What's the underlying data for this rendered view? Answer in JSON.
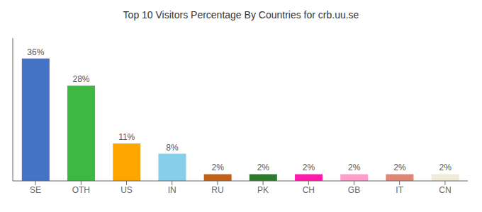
{
  "chart_data": {
    "type": "bar",
    "title": "Top 10 Visitors Percentage By Countries for crb.uu.se",
    "categories": [
      "SE",
      "OTH",
      "US",
      "IN",
      "RU",
      "PK",
      "CH",
      "GB",
      "IT",
      "CN"
    ],
    "values": [
      36,
      28,
      11,
      8,
      2,
      2,
      2,
      2,
      2,
      2
    ],
    "value_labels": [
      "36%",
      "28%",
      "11%",
      "8%",
      "2%",
      "2%",
      "2%",
      "2%",
      "2%",
      "2%"
    ],
    "colors": [
      "#4472c4",
      "#3cb843",
      "#ffa500",
      "#87ceeb",
      "#c0601a",
      "#2d7a2d",
      "#ff1aaa",
      "#ff9ecb",
      "#e08878",
      "#f0ecd8"
    ],
    "ylim": [
      0,
      42
    ],
    "grid": false,
    "data_labels": true,
    "tick_labels": "x"
  }
}
